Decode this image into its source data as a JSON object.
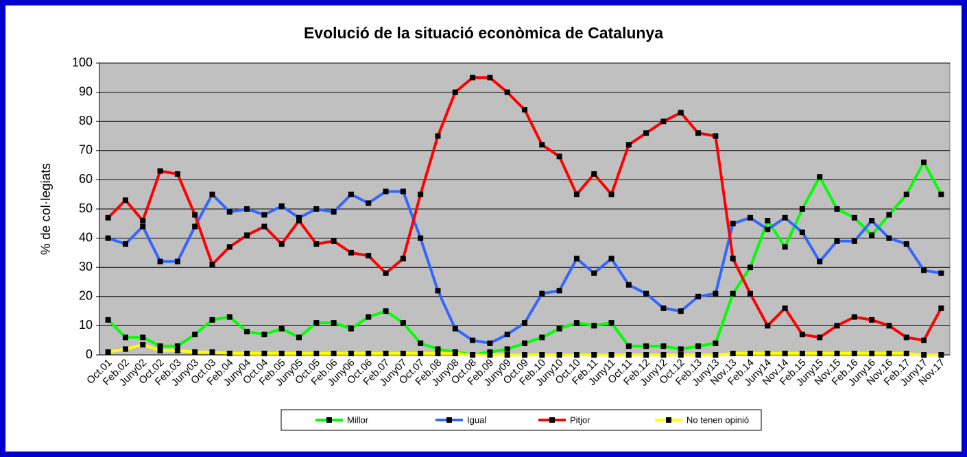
{
  "chart_data": {
    "type": "line",
    "title": "Evolució de la situació econòmica de Catalunya",
    "y_label": "% de col·legiats",
    "categories": [
      "Oct.01",
      "Feb.02",
      "Juny02",
      "Oct.02",
      "Feb.03",
      "Juny03",
      "Oct.03",
      "Feb.04",
      "Juny04",
      "Oct.04",
      "Feb.05",
      "Juny05",
      "Oct.05",
      "Feb.06",
      "Juny06",
      "Oct.06",
      "Feb.07",
      "Juny07",
      "Oct.07",
      "Feb.08",
      "Juny08",
      "Oct.08",
      "Feb.09",
      "Juny09",
      "Oct.09",
      "Feb.10",
      "Juny10",
      "Oct.10",
      "Feb.11",
      "Juny11",
      "Oct.11",
      "Feb.12",
      "Juny12",
      "Oct.12",
      "Feb.13",
      "Juny13",
      "Nov.13",
      "Feb.14",
      "Juny14",
      "Nov.14",
      "Feb.15",
      "Juny15",
      "Nov.15",
      "Feb.16",
      "Juny16",
      "Nov.16",
      "Feb.17",
      "Juny17",
      "Nov.17"
    ],
    "series": [
      {
        "name": "Millor",
        "color": "#00ff00",
        "values": [
          12,
          6,
          6,
          3,
          3,
          7,
          12,
          13,
          8,
          7,
          9,
          6,
          11,
          11,
          9,
          13,
          15,
          11,
          4,
          2,
          1,
          0,
          1,
          2,
          4,
          6,
          9,
          11,
          10,
          11,
          3,
          3,
          3,
          2,
          3,
          4,
          21,
          30,
          46,
          37,
          50,
          61,
          50,
          47,
          41,
          48,
          55,
          66,
          55
        ]
      },
      {
        "name": "Igual",
        "color": "#3366ff",
        "values": [
          40,
          38,
          44,
          32,
          32,
          44,
          55,
          49,
          50,
          48,
          51,
          47,
          50,
          49,
          55,
          52,
          56,
          56,
          40,
          22,
          9,
          5,
          4,
          7,
          11,
          21,
          22,
          33,
          28,
          33,
          24,
          21,
          16,
          15,
          20,
          21,
          45,
          47,
          43,
          47,
          42,
          32,
          39,
          39,
          46,
          40,
          38,
          29,
          28
        ]
      },
      {
        "name": "Pitjor",
        "color": "#ff0000",
        "values": [
          47,
          53,
          46,
          63,
          62,
          48,
          31,
          37,
          41,
          44,
          38,
          46,
          38,
          39,
          35,
          34,
          28,
          33,
          55,
          75,
          90,
          95,
          95,
          90,
          84,
          72,
          68,
          55,
          62,
          55,
          72,
          76,
          80,
          83,
          76,
          75,
          33,
          21,
          10,
          16,
          7,
          6,
          10,
          13,
          12,
          10,
          6,
          5,
          16
        ]
      },
      {
        "name": "No tenen opinió",
        "color": "#ffff00",
        "values": [
          1,
          2,
          3.5,
          1.5,
          1.5,
          1,
          1,
          0.5,
          0.5,
          0.5,
          0.5,
          0.5,
          0.5,
          0.5,
          0.5,
          0.5,
          0.5,
          0.5,
          0.5,
          0.5,
          0.5,
          0,
          0,
          0,
          0,
          0,
          0,
          0,
          0,
          0,
          0,
          0,
          0,
          0,
          0,
          0,
          0.5,
          0.5,
          0.5,
          0.5,
          0.5,
          0.5,
          0.5,
          0.5,
          0.5,
          0.5,
          0.5,
          0,
          0
        ]
      }
    ],
    "ylim": [
      0,
      100
    ],
    "yticks": [
      0,
      10,
      20,
      30,
      40,
      50,
      60,
      70,
      80,
      90,
      100
    ],
    "grid": true,
    "legend": "bottom"
  }
}
